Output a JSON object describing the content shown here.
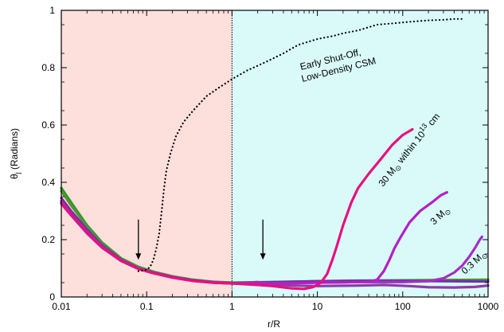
{
  "chart_data": {
    "type": "line",
    "title": "",
    "xlabel": "r/R",
    "ylabel": "θj (Radians)",
    "ylabel_main": "θ",
    "ylabel_sub": "j",
    "ylabel_rest": " (Radians)",
    "x_scale": "log",
    "xlim": [
      0.01,
      1000
    ],
    "ylim": [
      0,
      1
    ],
    "x_ticks": [
      {
        "value": 0.01,
        "label": "0.01"
      },
      {
        "value": 0.1,
        "label": "0.1"
      },
      {
        "value": 1,
        "label": "1"
      },
      {
        "value": 10,
        "label": "10"
      },
      {
        "value": 100,
        "label": "100"
      },
      {
        "value": 1000,
        "label": "1000"
      }
    ],
    "y_ticks": [
      {
        "value": 0,
        "label": "0"
      },
      {
        "value": 0.2,
        "label": "0.2"
      },
      {
        "value": 0.4,
        "label": "0.4"
      },
      {
        "value": 0.6,
        "label": "0.6"
      },
      {
        "value": 0.8,
        "label": "0.8"
      },
      {
        "value": 1,
        "label": "1"
      }
    ],
    "grid": false,
    "regions": [
      {
        "x_from": 0.01,
        "x_to": 1,
        "color": "#fddfdb"
      },
      {
        "x_from": 1,
        "x_to": 1000,
        "color": "#dafafa"
      }
    ],
    "divider_x": 1,
    "arrows": [
      {
        "x": 0.08,
        "y_top": 0.27,
        "y_bottom": 0.13
      },
      {
        "x": 2.3,
        "y_top": 0.27,
        "y_bottom": 0.13
      }
    ],
    "series": [
      {
        "color": "#1f9e1f",
        "style": "solid",
        "points": [
          [
            0.01,
            0.38
          ],
          [
            0.013,
            0.33
          ],
          [
            0.02,
            0.25
          ],
          [
            0.03,
            0.19
          ],
          [
            0.05,
            0.135
          ],
          [
            0.08,
            0.105
          ],
          [
            0.12,
            0.088
          ],
          [
            0.2,
            0.072
          ],
          [
            0.35,
            0.06
          ],
          [
            0.6,
            0.053
          ],
          [
            1,
            0.05
          ],
          [
            3,
            0.052
          ],
          [
            10,
            0.055
          ],
          [
            30,
            0.057
          ],
          [
            100,
            0.058
          ],
          [
            300,
            0.059
          ],
          [
            1000,
            0.06
          ]
        ]
      },
      {
        "color": "#5c8f3c",
        "style": "solid",
        "points": [
          [
            0.01,
            0.37
          ],
          [
            0.013,
            0.32
          ],
          [
            0.02,
            0.245
          ],
          [
            0.03,
            0.185
          ],
          [
            0.05,
            0.132
          ],
          [
            0.08,
            0.103
          ],
          [
            0.12,
            0.087
          ],
          [
            0.2,
            0.071
          ],
          [
            0.35,
            0.059
          ],
          [
            0.6,
            0.052
          ],
          [
            1,
            0.049
          ],
          [
            3,
            0.051
          ],
          [
            10,
            0.054
          ],
          [
            30,
            0.056
          ],
          [
            100,
            0.057
          ],
          [
            300,
            0.058
          ],
          [
            1000,
            0.058
          ]
        ]
      },
      {
        "color": "#6f2fa8",
        "style": "solid",
        "points": [
          [
            0.01,
            0.345
          ],
          [
            0.013,
            0.3
          ],
          [
            0.02,
            0.235
          ],
          [
            0.03,
            0.18
          ],
          [
            0.05,
            0.13
          ],
          [
            0.08,
            0.1
          ],
          [
            0.12,
            0.085
          ],
          [
            0.2,
            0.07
          ],
          [
            0.35,
            0.058
          ],
          [
            0.6,
            0.052
          ],
          [
            1,
            0.048
          ],
          [
            2,
            0.05
          ],
          [
            5,
            0.053
          ],
          [
            10,
            0.055
          ],
          [
            30,
            0.056
          ],
          [
            100,
            0.056
          ],
          [
            300,
            0.055
          ],
          [
            1000,
            0.054
          ]
        ]
      },
      {
        "color": "#8e3aa6",
        "style": "solid",
        "points": [
          [
            0.01,
            0.335
          ],
          [
            0.013,
            0.29
          ],
          [
            0.02,
            0.228
          ],
          [
            0.03,
            0.176
          ],
          [
            0.05,
            0.128
          ],
          [
            0.08,
            0.099
          ],
          [
            0.12,
            0.084
          ],
          [
            0.2,
            0.069
          ],
          [
            0.35,
            0.057
          ],
          [
            0.6,
            0.051
          ],
          [
            1,
            0.047
          ],
          [
            2,
            0.052
          ],
          [
            3,
            0.045
          ],
          [
            5,
            0.04
          ],
          [
            10,
            0.038
          ],
          [
            30,
            0.04
          ],
          [
            60,
            0.042
          ],
          [
            120,
            0.038
          ],
          [
            200,
            0.034
          ],
          [
            400,
            0.033
          ],
          [
            700,
            0.035
          ],
          [
            1000,
            0.04
          ]
        ]
      },
      {
        "color": "#a52ec4",
        "style": "solid",
        "points": [
          [
            0.01,
            0.325
          ],
          [
            0.013,
            0.285
          ],
          [
            0.02,
            0.222
          ],
          [
            0.03,
            0.172
          ],
          [
            0.05,
            0.126
          ],
          [
            0.08,
            0.098
          ],
          [
            0.12,
            0.083
          ],
          [
            0.2,
            0.068
          ],
          [
            0.35,
            0.056
          ],
          [
            0.6,
            0.05
          ],
          [
            1,
            0.047
          ],
          [
            3,
            0.048
          ],
          [
            10,
            0.05
          ],
          [
            30,
            0.052
          ],
          [
            100,
            0.052
          ],
          [
            200,
            0.055
          ],
          [
            300,
            0.065
          ],
          [
            400,
            0.085
          ],
          [
            500,
            0.11
          ],
          [
            600,
            0.14
          ],
          [
            700,
            0.17
          ],
          [
            800,
            0.2
          ],
          [
            850,
            0.21
          ]
        ]
      },
      {
        "color": "#b320c8",
        "style": "solid",
        "points": [
          [
            0.01,
            0.33
          ],
          [
            0.013,
            0.288
          ],
          [
            0.02,
            0.225
          ],
          [
            0.03,
            0.174
          ],
          [
            0.05,
            0.127
          ],
          [
            0.08,
            0.098
          ],
          [
            0.12,
            0.083
          ],
          [
            0.2,
            0.068
          ],
          [
            0.35,
            0.056
          ],
          [
            0.6,
            0.05
          ],
          [
            1,
            0.047
          ],
          [
            3,
            0.048
          ],
          [
            10,
            0.05
          ],
          [
            20,
            0.051
          ],
          [
            40,
            0.053
          ],
          [
            50,
            0.06
          ],
          [
            60,
            0.09
          ],
          [
            70,
            0.13
          ],
          [
            80,
            0.17
          ],
          [
            95,
            0.21
          ],
          [
            120,
            0.26
          ],
          [
            160,
            0.3
          ],
          [
            220,
            0.33
          ],
          [
            280,
            0.355
          ],
          [
            330,
            0.365
          ]
        ]
      },
      {
        "color": "#e8107c",
        "style": "solid",
        "points": [
          [
            0.01,
            0.33
          ],
          [
            0.013,
            0.288
          ],
          [
            0.02,
            0.225
          ],
          [
            0.03,
            0.174
          ],
          [
            0.05,
            0.127
          ],
          [
            0.08,
            0.098
          ],
          [
            0.12,
            0.083
          ],
          [
            0.2,
            0.068
          ],
          [
            0.35,
            0.056
          ],
          [
            0.6,
            0.05
          ],
          [
            1,
            0.047
          ],
          [
            2,
            0.042
          ],
          [
            3,
            0.038
          ],
          [
            5,
            0.03
          ],
          [
            7,
            0.028
          ],
          [
            9,
            0.035
          ],
          [
            11,
            0.05
          ],
          [
            13,
            0.08
          ],
          [
            15,
            0.13
          ],
          [
            17,
            0.18
          ],
          [
            20,
            0.25
          ],
          [
            25,
            0.33
          ],
          [
            30,
            0.38
          ],
          [
            40,
            0.43
          ],
          [
            55,
            0.48
          ],
          [
            75,
            0.53
          ],
          [
            100,
            0.565
          ],
          [
            130,
            0.585
          ]
        ]
      },
      {
        "color": "#000000",
        "style": "dotted",
        "points": [
          [
            0.08,
            0.09
          ],
          [
            0.1,
            0.095
          ],
          [
            0.11,
            0.105
          ],
          [
            0.12,
            0.13
          ],
          [
            0.13,
            0.17
          ],
          [
            0.14,
            0.22
          ],
          [
            0.15,
            0.3
          ],
          [
            0.16,
            0.38
          ],
          [
            0.17,
            0.44
          ],
          [
            0.19,
            0.5
          ],
          [
            0.22,
            0.56
          ],
          [
            0.27,
            0.61
          ],
          [
            0.35,
            0.65
          ],
          [
            0.5,
            0.7
          ],
          [
            0.7,
            0.73
          ],
          [
            1,
            0.76
          ],
          [
            1.5,
            0.79
          ],
          [
            2.5,
            0.82
          ],
          [
            4,
            0.85
          ],
          [
            6,
            0.88
          ],
          [
            10,
            0.9
          ],
          [
            15,
            0.91
          ],
          [
            20,
            0.92
          ],
          [
            30,
            0.93
          ],
          [
            50,
            0.95
          ],
          [
            80,
            0.955
          ],
          [
            120,
            0.96
          ],
          [
            200,
            0.965
          ],
          [
            300,
            0.967
          ],
          [
            400,
            0.97
          ],
          [
            500,
            0.97
          ]
        ]
      }
    ],
    "annotations": [
      {
        "line1": "Early Shut-Off,",
        "line2": "Low-Density CSM"
      },
      {
        "prefix": "30 M",
        "sym": "⊙",
        "mid": " within 10",
        "sup": "13",
        "suffix": " cm"
      },
      {
        "prefix": "3 M",
        "sym": "⊙"
      },
      {
        "prefix": "0.3 M",
        "sym": "⊙"
      }
    ]
  }
}
